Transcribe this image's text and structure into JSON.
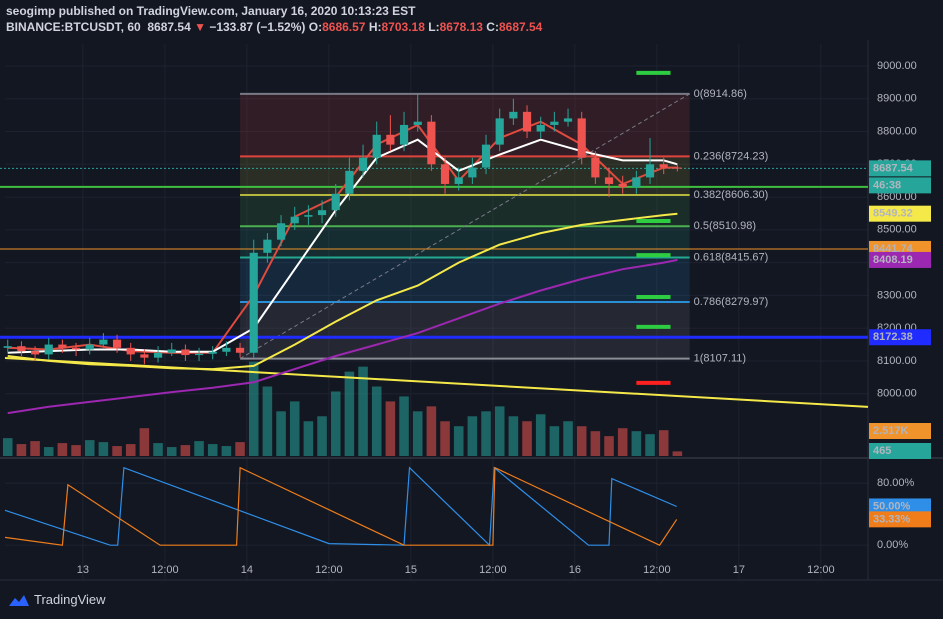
{
  "header": {
    "line1": "seogimp published on TradingView.com, January 16, 2020 10:13:23 EST",
    "symbol": "BINANCE:BTCUSDT, 60",
    "last": "8687.54",
    "arrow": "▼",
    "change": "−133.87 (−1.52%)",
    "o_label": "O:",
    "o": "8686.57",
    "h_label": "H:",
    "h": "8703.18",
    "l_label": "L:",
    "l": "8678.13",
    "c_label": "C:",
    "c": "8687.54"
  },
  "brand": "TradingView",
  "chart_data": [
    {
      "type": "candlestick",
      "xlim": [
        -11.4,
        114.9
      ],
      "ylim": [
        7810,
        9067
      ],
      "xticks": [
        {
          "value": 0,
          "label": "13"
        },
        {
          "value": 12,
          "label": "12:00"
        },
        {
          "value": 24,
          "label": "14"
        },
        {
          "value": 36,
          "label": "12:00"
        },
        {
          "value": 48,
          "label": "15"
        },
        {
          "value": 60,
          "label": "12:00"
        },
        {
          "value": 72,
          "label": "16"
        },
        {
          "value": 84,
          "label": "12:00"
        },
        {
          "value": 96,
          "label": "17"
        },
        {
          "value": 108,
          "label": "12:00"
        }
      ],
      "yticks": [
        {
          "value": 8000,
          "label": "8000.00"
        },
        {
          "value": 8100,
          "label": "8100.00"
        },
        {
          "value": 8200,
          "label": "8200.00"
        },
        {
          "value": 8300,
          "label": "8300.00"
        },
        {
          "value": 8400,
          "label": "8400.00"
        },
        {
          "value": 8500,
          "label": "8500.00"
        },
        {
          "value": 8600,
          "label": "8600.00"
        },
        {
          "value": 8700,
          "label": "8700.00"
        },
        {
          "value": 8800,
          "label": "8800.00"
        },
        {
          "value": 8900,
          "label": "8900.00"
        },
        {
          "value": 9000,
          "label": "9000.00"
        }
      ],
      "up_color": "#26a69a",
      "down_color": "#ef5350",
      "x": [
        -11,
        -9,
        -7,
        -5,
        -3,
        -1,
        1,
        3,
        5,
        7,
        9,
        11,
        13,
        15,
        17,
        19,
        21,
        23,
        25,
        27,
        29,
        31,
        33,
        35,
        37,
        39,
        41,
        43,
        45,
        47,
        49,
        51,
        53,
        55,
        57,
        59,
        61,
        63,
        65,
        67,
        69,
        71,
        73,
        75,
        77,
        79,
        81,
        83,
        85,
        87
      ],
      "ohlc": [
        [
          8140,
          8165,
          8125,
          8145
        ],
        [
          8145,
          8160,
          8115,
          8130
        ],
        [
          8130,
          8145,
          8100,
          8120
        ],
        [
          8120,
          8170,
          8105,
          8150
        ],
        [
          8150,
          8165,
          8125,
          8140
        ],
        [
          8140,
          8155,
          8115,
          8135
        ],
        [
          8135,
          8170,
          8120,
          8150
        ],
        [
          8150,
          8185,
          8140,
          8165
        ],
        [
          8165,
          8180,
          8125,
          8140
        ],
        [
          8140,
          8155,
          8100,
          8120
        ],
        [
          8120,
          8135,
          8090,
          8110
        ],
        [
          8110,
          8145,
          8095,
          8125
        ],
        [
          8125,
          8155,
          8115,
          8135
        ],
        [
          8135,
          8150,
          8100,
          8118
        ],
        [
          8118,
          8140,
          8100,
          8122
        ],
        [
          8122,
          8145,
          8105,
          8128
        ],
        [
          8128,
          8160,
          8115,
          8140
        ],
        [
          8140,
          8155,
          8110,
          8125
        ],
        [
          8125,
          8470,
          8110,
          8430
        ],
        [
          8430,
          8490,
          8400,
          8470
        ],
        [
          8470,
          8545,
          8450,
          8520
        ],
        [
          8520,
          8570,
          8500,
          8540
        ],
        [
          8540,
          8575,
          8515,
          8545
        ],
        [
          8545,
          8590,
          8520,
          8560
        ],
        [
          8560,
          8640,
          8540,
          8610
        ],
        [
          8610,
          8720,
          8590,
          8680
        ],
        [
          8680,
          8760,
          8660,
          8720
        ],
        [
          8720,
          8830,
          8700,
          8790
        ],
        [
          8790,
          8850,
          8740,
          8760
        ],
        [
          8760,
          8860,
          8740,
          8820
        ],
        [
          8820,
          8915,
          8800,
          8830
        ],
        [
          8830,
          8850,
          8680,
          8700
        ],
        [
          8700,
          8720,
          8610,
          8640
        ],
        [
          8640,
          8690,
          8620,
          8660
        ],
        [
          8660,
          8720,
          8640,
          8690
        ],
        [
          8690,
          8790,
          8670,
          8760
        ],
        [
          8760,
          8870,
          8740,
          8840
        ],
        [
          8840,
          8900,
          8820,
          8860
        ],
        [
          8860,
          8880,
          8780,
          8800
        ],
        [
          8800,
          8845,
          8780,
          8820
        ],
        [
          8820,
          8860,
          8800,
          8830
        ],
        [
          8830,
          8870,
          8815,
          8840
        ],
        [
          8840,
          8860,
          8700,
          8720
        ],
        [
          8720,
          8740,
          8640,
          8660
        ],
        [
          8660,
          8690,
          8600,
          8640
        ],
        [
          8640,
          8665,
          8610,
          8630
        ],
        [
          8630,
          8680,
          8610,
          8660
        ],
        [
          8660,
          8780,
          8640,
          8700
        ],
        [
          8700,
          8720,
          8670,
          8690
        ],
        [
          8690,
          8703,
          8678,
          8688
        ]
      ],
      "volume": {
        "vlim": [
          0,
          41500
        ],
        "values": [
          1800,
          1200,
          1500,
          900,
          1300,
          1100,
          1600,
          1400,
          1000,
          1200,
          2800,
          1300,
          900,
          1100,
          1500,
          1200,
          1000,
          1400,
          9500,
          7000,
          4500,
          5500,
          3500,
          4000,
          6500,
          8500,
          9000,
          7000,
          5500,
          6000,
          4500,
          5000,
          3500,
          3000,
          4000,
          4500,
          5000,
          4000,
          3500,
          4200,
          3000,
          3500,
          3000,
          2500,
          2000,
          2800,
          2500,
          2200,
          2600,
          465
        ],
        "ma_tag": {
          "value": 2517,
          "label": "2.517K"
        }
      },
      "series": [
        {
          "name": "MA fast",
          "color": "#e04a3f",
          "x": [
            -11,
            -5,
            1,
            7,
            13,
            19,
            25,
            31,
            37,
            43,
            49,
            55,
            61,
            67,
            73,
            79,
            85,
            87
          ],
          "values": [
            8140,
            8135,
            8150,
            8130,
            8125,
            8125,
            8300,
            8540,
            8600,
            8760,
            8820,
            8650,
            8780,
            8830,
            8760,
            8640,
            8690,
            8690
          ]
        },
        {
          "name": "MA white",
          "color": "#ffffff",
          "x": [
            -11,
            -5,
            1,
            7,
            13,
            19,
            25,
            31,
            37,
            43,
            49,
            55,
            61,
            67,
            73,
            79,
            85,
            87
          ],
          "values": [
            8125,
            8130,
            8135,
            8135,
            8128,
            8128,
            8200,
            8380,
            8560,
            8720,
            8775,
            8680,
            8730,
            8775,
            8740,
            8712,
            8712,
            8700
          ]
        },
        {
          "name": "MA yellow",
          "color": "#f5e94a",
          "tag": true,
          "x": [
            -11,
            -5,
            1,
            7,
            13,
            19,
            25,
            31,
            37,
            43,
            49,
            55,
            61,
            67,
            73,
            79,
            85,
            87
          ],
          "values": [
            8115,
            8100,
            8090,
            8085,
            8078,
            8075,
            8085,
            8150,
            8220,
            8285,
            8330,
            8400,
            8455,
            8490,
            8515,
            8530,
            8545,
            8549.32
          ]
        },
        {
          "name": "MA purple",
          "color": "#9c27b0",
          "tag": true,
          "x": [
            -11,
            -5,
            1,
            7,
            13,
            19,
            25,
            31,
            37,
            43,
            49,
            55,
            61,
            67,
            73,
            79,
            85,
            87
          ],
          "values": [
            7941,
            7960,
            7975,
            7990,
            8005,
            8018,
            8035,
            8075,
            8115,
            8150,
            8185,
            8230,
            8275,
            8315,
            8350,
            8380,
            8400,
            8408.19
          ]
        }
      ],
      "fib": {
        "x": [
          23,
          88.8
        ],
        "levels": [
          {
            "value": 8914.86,
            "label": "0(8914.86)",
            "color": "#787b86"
          },
          {
            "value": 8724.23,
            "label": "0.236(8724.23)",
            "color": "#e0443f"
          },
          {
            "value": 8606.3,
            "label": "0.382(8606.30)",
            "color": "#b5b83c"
          },
          {
            "value": 8510.98,
            "label": "0.5(8510.98)",
            "color": "#4caf50"
          },
          {
            "value": 8415.67,
            "label": "0.618(8415.67)",
            "color": "#22a98f"
          },
          {
            "value": 8279.97,
            "label": "0.786(8279.97)",
            "color": "#2a8fd6"
          },
          {
            "value": 8107.11,
            "label": "1(8107.11)",
            "color": "#8a8d96"
          }
        ]
      },
      "hlines": [
        {
          "value": 8687.54,
          "color": "#26a69a",
          "dash": true,
          "tag": true,
          "tag_bg": "#26a69a",
          "tag_fg": "#ffffff"
        },
        {
          "value": 8631,
          "color": "#3fbf3f",
          "width": 2
        },
        {
          "value": 8441.74,
          "color": "#f0932b",
          "tag": true,
          "tag_bg": "#f0932b",
          "tag_fg": "#131722"
        },
        {
          "value": 8172.38,
          "color": "#1f2bff",
          "width": 3,
          "tag": true,
          "tag_bg": "#1f2bff",
          "tag_fg": "#ffffff"
        }
      ],
      "countdown": "46:38",
      "trendline": {
        "x": [
          -11.4,
          114.9
        ],
        "values": [
          8109,
          7960
        ],
        "color": "#f5e94a"
      },
      "markers": {
        "x": [
          81,
          86
        ],
        "items": [
          {
            "value": 8979,
            "color": "#2ecc40"
          },
          {
            "value": 8527,
            "color": "#2ecc40"
          },
          {
            "value": 8423,
            "color": "#2ecc40"
          },
          {
            "value": 8295,
            "color": "#2ecc40"
          },
          {
            "value": 8204,
            "color": "#2ecc40"
          },
          {
            "value": 8033,
            "color": "#ff2020"
          }
        ]
      }
    },
    {
      "type": "line",
      "ylim": [
        -45,
        110
      ],
      "yticks": [
        {
          "value": 0,
          "label": "0.00%"
        },
        {
          "value": 80,
          "label": "80.00%"
        }
      ],
      "series": [
        {
          "name": "Blue",
          "color": "#2f8fe8",
          "x": [
            -11.4,
            4,
            5.1,
            6,
            36,
            47,
            47.8,
            59.5,
            60.2,
            74,
            77,
            77.4,
            86.9
          ],
          "values": [
            45,
            0,
            0,
            100,
            2,
            0,
            100,
            0,
            100,
            0,
            0,
            86,
            50
          ],
          "last_label": "50.00%"
        },
        {
          "name": "Orange",
          "color": "#f07d1a",
          "x": [
            -11.4,
            -3,
            -2.2,
            11.3,
            22.5,
            23,
            47,
            60,
            60.3,
            84.4,
            86.9
          ],
          "values": [
            10,
            0,
            78,
            0,
            0,
            100,
            0,
            0,
            100,
            0,
            33.33
          ],
          "last_label": "33.33%"
        }
      ]
    }
  ]
}
